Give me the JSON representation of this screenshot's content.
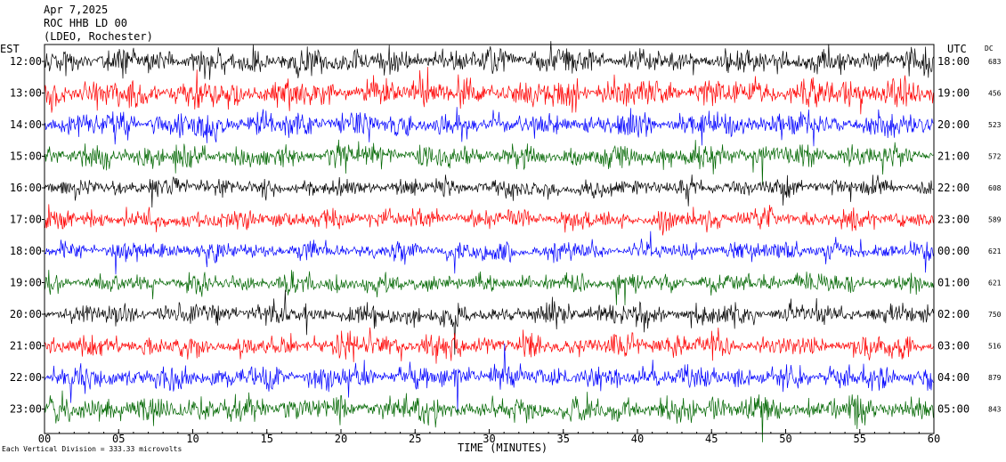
{
  "header": {
    "date": "Apr 7,2025",
    "station": "ROC HHB LD 00",
    "location": "(LDEO, Rochester)"
  },
  "est_label": "EST",
  "utc_label": "UTC",
  "dc_label": "DC",
  "scale_text": "Each Vertical Division =  333.33 microvolts",
  "colors": {
    "trace_cycle": [
      "#000000",
      "#ff0000",
      "#0000ff",
      "#006600"
    ],
    "frame": "#000000",
    "background": "#ffffff"
  },
  "chart_data": {
    "type": "line",
    "subtype": "helicorder",
    "xlabel": "TIME (MINUTES)",
    "xlim": [
      0,
      60
    ],
    "x_ticks": [
      "00",
      "05",
      "10",
      "15",
      "20",
      "25",
      "30",
      "35",
      "40",
      "45",
      "50",
      "55",
      "60"
    ],
    "rows": [
      {
        "est": "12:00",
        "utc": "18:00",
        "dc": "683",
        "color": "#000000",
        "amplitude": 1.0
      },
      {
        "est": "13:00",
        "utc": "19:00",
        "dc": "456",
        "color": "#ff0000",
        "amplitude": 1.1
      },
      {
        "est": "14:00",
        "utc": "20:00",
        "dc": "523",
        "color": "#0000ff",
        "amplitude": 1.0
      },
      {
        "est": "15:00",
        "utc": "21:00",
        "dc": "572",
        "color": "#006600",
        "amplitude": 0.9
      },
      {
        "est": "16:00",
        "utc": "22:00",
        "dc": "608",
        "color": "#000000",
        "amplitude": 0.7
      },
      {
        "est": "17:00",
        "utc": "23:00",
        "dc": "589",
        "color": "#ff0000",
        "amplitude": 0.75
      },
      {
        "est": "18:00",
        "utc": "00:00",
        "dc": "621",
        "color": "#0000ff",
        "amplitude": 0.7
      },
      {
        "est": "19:00",
        "utc": "01:00",
        "dc": "621",
        "color": "#006600",
        "amplitude": 0.75
      },
      {
        "est": "20:00",
        "utc": "02:00",
        "dc": "750",
        "color": "#000000",
        "amplitude": 0.8
      },
      {
        "est": "21:00",
        "utc": "03:00",
        "dc": "516",
        "color": "#ff0000",
        "amplitude": 0.85
      },
      {
        "est": "22:00",
        "utc": "04:00",
        "dc": "879",
        "color": "#0000ff",
        "amplitude": 0.9
      },
      {
        "est": "23:00",
        "utc": "05:00",
        "dc": "843",
        "color": "#006600",
        "amplitude": 1.0
      }
    ]
  }
}
